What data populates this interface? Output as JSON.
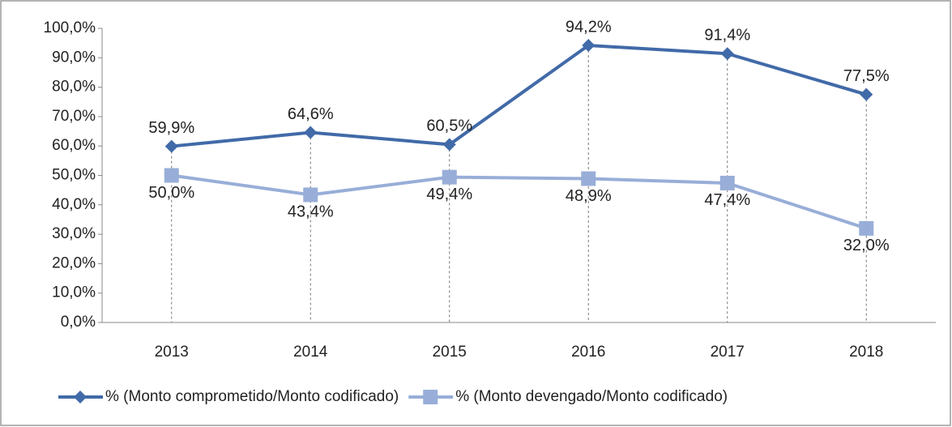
{
  "chart_data": {
    "type": "line",
    "categories": [
      "2013",
      "2014",
      "2015",
      "2016",
      "2017",
      "2018"
    ],
    "series": [
      {
        "name": "% (Monto comprometido/Monto codificado)",
        "color": "#416aa8",
        "marker": "diamond",
        "values": [
          59.9,
          64.6,
          60.5,
          94.2,
          91.4,
          77.5
        ],
        "value_labels": [
          "59,9%",
          "64,6%",
          "60,5%",
          "94,2%",
          "91,4%",
          "77,5%"
        ]
      },
      {
        "name": "% (Monto devengado/Monto codificado)",
        "color": "#98aed8",
        "marker": "square",
        "values": [
          50.0,
          43.4,
          49.4,
          48.9,
          47.4,
          32.0
        ],
        "value_labels": [
          "50,0%",
          "43,4%",
          "49,4%",
          "48,9%",
          "47,4%",
          "32,0%"
        ]
      }
    ],
    "ylim": [
      0,
      100
    ],
    "yticks": [
      {
        "value": 0,
        "label": "0,0%"
      },
      {
        "value": 10,
        "label": "10,0%"
      },
      {
        "value": 20,
        "label": "20,0%"
      },
      {
        "value": 30,
        "label": "30,0%"
      },
      {
        "value": 40,
        "label": "40,0%"
      },
      {
        "value": 50,
        "label": "50,0%"
      },
      {
        "value": 60,
        "label": "60,0%"
      },
      {
        "value": 70,
        "label": "70,0%"
      },
      {
        "value": 80,
        "label": "80,0%"
      },
      {
        "value": 90,
        "label": "90,0%"
      },
      {
        "value": 100,
        "label": "100,0%"
      }
    ],
    "drop_lines": true,
    "legend": "bottom"
  }
}
